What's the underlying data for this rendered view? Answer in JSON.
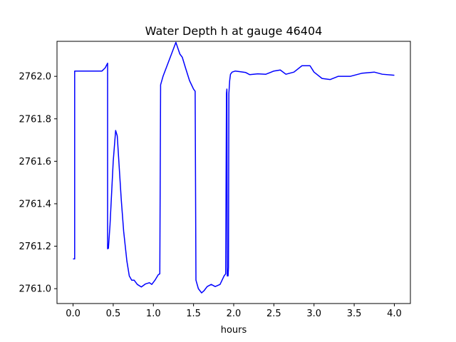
{
  "chart_data": {
    "type": "line",
    "title": "Water Depth h at gauge 46404",
    "xlabel": "hours",
    "ylabel": "",
    "xlim": [
      -0.2,
      4.2
    ],
    "ylim": [
      2760.93,
      2762.165
    ],
    "xticks": [
      0.0,
      0.5,
      1.0,
      1.5,
      2.0,
      2.5,
      3.0,
      3.5,
      4.0
    ],
    "xtick_labels": [
      "0.0",
      "0.5",
      "1.0",
      "1.5",
      "2.0",
      "2.5",
      "3.0",
      "3.5",
      "4.0"
    ],
    "yticks": [
      2761.0,
      2761.2,
      2761.4,
      2761.6,
      2761.8,
      2762.0
    ],
    "ytick_labels": [
      "2761.0",
      "2761.2",
      "2761.4",
      "2761.6",
      "2761.8",
      "2762.0"
    ],
    "grid": false,
    "series": [
      {
        "color": "#0000ff",
        "x": [
          0.0,
          0.02,
          0.02,
          0.1,
          0.2,
          0.3,
          0.36,
          0.4,
          0.43,
          0.43,
          0.44,
          0.46,
          0.5,
          0.53,
          0.55,
          0.57,
          0.6,
          0.63,
          0.67,
          0.7,
          0.73,
          0.76,
          0.8,
          0.85,
          0.9,
          0.95,
          0.98,
          1.02,
          1.06,
          1.08,
          1.09,
          1.12,
          1.2,
          1.28,
          1.33,
          1.36,
          1.4,
          1.45,
          1.5,
          1.52,
          1.53,
          1.56,
          1.6,
          1.63,
          1.67,
          1.72,
          1.77,
          1.83,
          1.88,
          1.9,
          1.91,
          1.915,
          1.92,
          1.93,
          1.935,
          1.94,
          1.945,
          1.95,
          1.96,
          1.98,
          2.02,
          2.08,
          2.15,
          2.2,
          2.3,
          2.4,
          2.5,
          2.58,
          2.65,
          2.75,
          2.85,
          2.95,
          3.0,
          3.1,
          3.2,
          3.3,
          3.45,
          3.6,
          3.75,
          3.85,
          4.0
        ],
        "y": [
          2761.14,
          2761.14,
          2762.025,
          2762.025,
          2762.025,
          2762.025,
          2762.025,
          2762.04,
          2762.062,
          2761.188,
          2761.19,
          2761.3,
          2761.6,
          2761.745,
          2761.72,
          2761.6,
          2761.42,
          2761.27,
          2761.13,
          2761.06,
          2761.04,
          2761.04,
          2761.02,
          2761.008,
          2761.022,
          2761.028,
          2761.02,
          2761.04,
          2761.065,
          2761.07,
          2761.96,
          2762.0,
          2762.08,
          2762.16,
          2762.105,
          2762.09,
          2762.04,
          2761.98,
          2761.94,
          2761.93,
          2761.04,
          2761.0,
          2760.98,
          2760.99,
          2761.01,
          2761.02,
          2761.01,
          2761.02,
          2761.06,
          2761.07,
          2761.92,
          2761.94,
          2761.06,
          2761.06,
          2761.1,
          2761.92,
          2761.95,
          2761.98,
          2762.01,
          2762.02,
          2762.025,
          2762.022,
          2762.018,
          2762.008,
          2762.012,
          2762.01,
          2762.025,
          2762.03,
          2762.01,
          2762.02,
          2762.05,
          2762.05,
          2762.02,
          2761.99,
          2761.985,
          2762.0,
          2762.0,
          2762.015,
          2762.02,
          2762.01,
          2762.005
        ]
      }
    ]
  }
}
